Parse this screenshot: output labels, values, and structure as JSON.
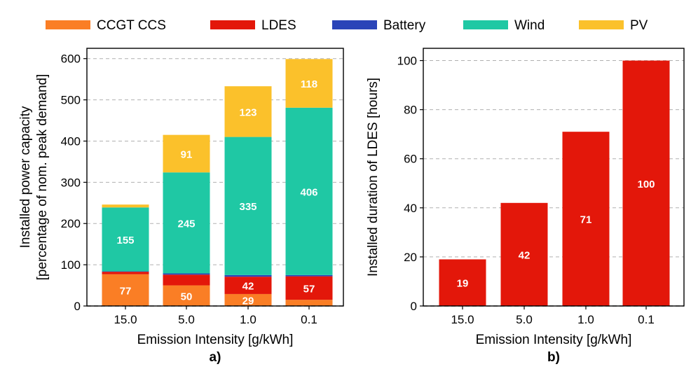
{
  "legend": [
    {
      "label": "CCGT CCS",
      "color": "#fa7e25"
    },
    {
      "label": "LDES",
      "color": "#e3170a"
    },
    {
      "label": "Battery",
      "color": "#2a44b8"
    },
    {
      "label": "Wind",
      "color": "#1fc8a4"
    },
    {
      "label": "PV",
      "color": "#fbc12b"
    }
  ],
  "chart_data": [
    {
      "type": "bar",
      "stacked": true,
      "panel": "a)",
      "xlabel": "Emission Intensity [g/kWh]",
      "ylabel": [
        "Installed power capacity",
        "[percentage of nom. peak demand]"
      ],
      "categories": [
        "15.0",
        "5.0",
        "1.0",
        "0.1"
      ],
      "ylim": [
        0,
        625
      ],
      "yticks": [
        0,
        100,
        200,
        300,
        400,
        500,
        600
      ],
      "grid": true,
      "series": [
        {
          "name": "CCGT CCS",
          "color": "#fa7e25",
          "values": [
            77,
            50,
            29,
            15
          ],
          "labels": [
            "77",
            "50",
            "29",
            ""
          ]
        },
        {
          "name": "LDES",
          "color": "#e3170a",
          "values": [
            6,
            26,
            42,
            57
          ],
          "labels": [
            "",
            "",
            "42",
            "57"
          ]
        },
        {
          "name": "Battery",
          "color": "#2a44b8",
          "values": [
            1,
            3,
            4,
            3
          ],
          "labels": [
            "",
            "",
            "",
            ""
          ]
        },
        {
          "name": "Wind",
          "color": "#1fc8a4",
          "values": [
            155,
            245,
            335,
            406
          ],
          "labels": [
            "155",
            "245",
            "335",
            "406"
          ]
        },
        {
          "name": "PV",
          "color": "#fbc12b",
          "values": [
            7,
            91,
            123,
            118
          ],
          "labels": [
            "",
            "91",
            "123",
            "118"
          ]
        }
      ]
    },
    {
      "type": "bar",
      "panel": "b)",
      "xlabel": "Emission Intensity [g/kWh]",
      "ylabel": "Installed duration of LDES [hours]",
      "categories": [
        "15.0",
        "5.0",
        "1.0",
        "0.1"
      ],
      "values": [
        19,
        42,
        71,
        100
      ],
      "labels": [
        "19",
        "42",
        "71",
        "100"
      ],
      "color": "#e3170a",
      "ylim": [
        0,
        105
      ],
      "yticks": [
        0,
        20,
        40,
        60,
        80,
        100
      ],
      "grid": true
    }
  ]
}
